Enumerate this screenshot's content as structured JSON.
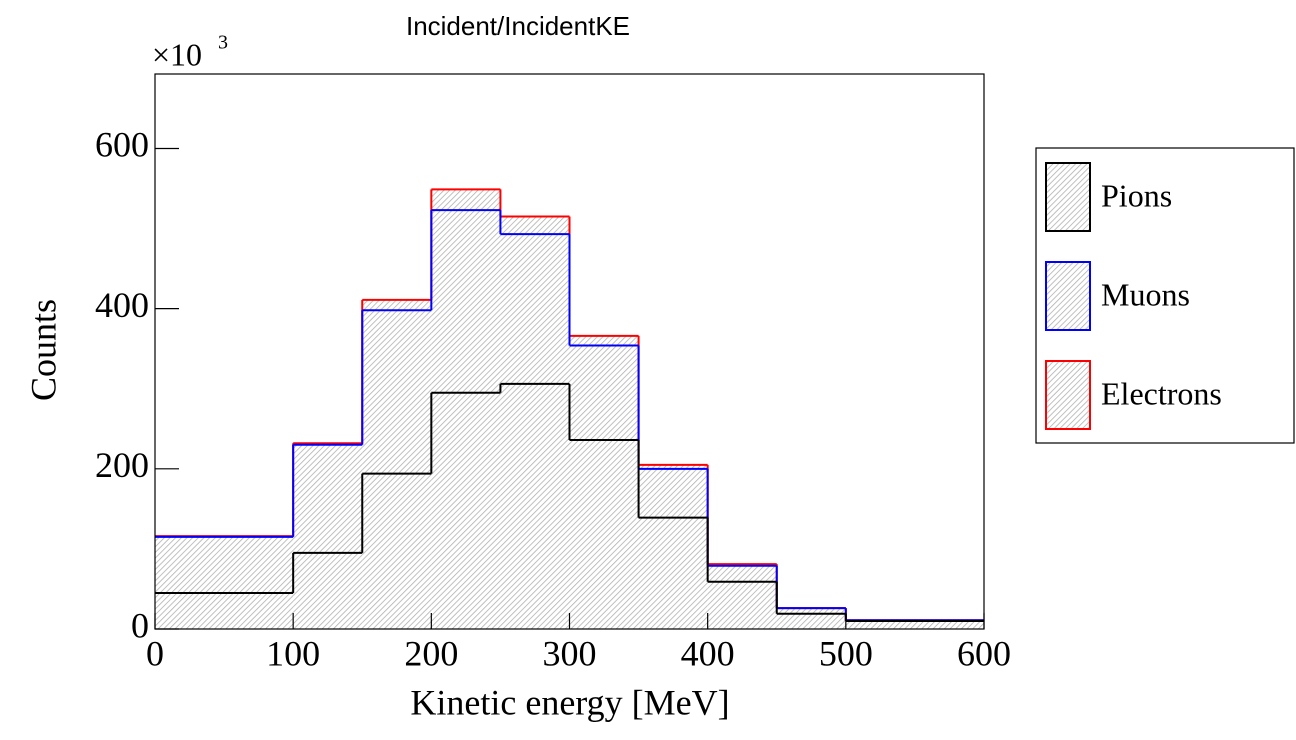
{
  "chart_data": {
    "type": "histogram",
    "title": "Incident/IncidentKE",
    "x_label": "Kinetic energy [MeV]",
    "y_label": "Counts",
    "y_scale_base": "×10",
    "y_scale_exponent": "3",
    "stacked": true,
    "bins": [
      0,
      100,
      150,
      200,
      250,
      300,
      350,
      400,
      450,
      500,
      600
    ],
    "series": [
      {
        "name": "Pions",
        "color": "#000000",
        "values": [
          45,
          95,
          194,
          295,
          306,
          236,
          139,
          59,
          19,
          10
        ]
      },
      {
        "name": "Muons",
        "color": "#0000ff",
        "values": [
          70,
          135,
          204,
          228,
          187,
          118,
          61,
          20,
          7,
          1
        ]
      },
      {
        "name": "Electrons",
        "color": "#ff0000",
        "values": [
          1,
          2,
          13,
          26,
          22,
          12,
          5,
          2,
          0,
          0
        ]
      }
    ],
    "xlim": [
      0,
      600
    ],
    "xticks": [
      0,
      100,
      200,
      300,
      400,
      500,
      600
    ],
    "ylim": [
      0,
      693
    ],
    "yticks": [
      0,
      200,
      400,
      600
    ],
    "legend": "right"
  }
}
